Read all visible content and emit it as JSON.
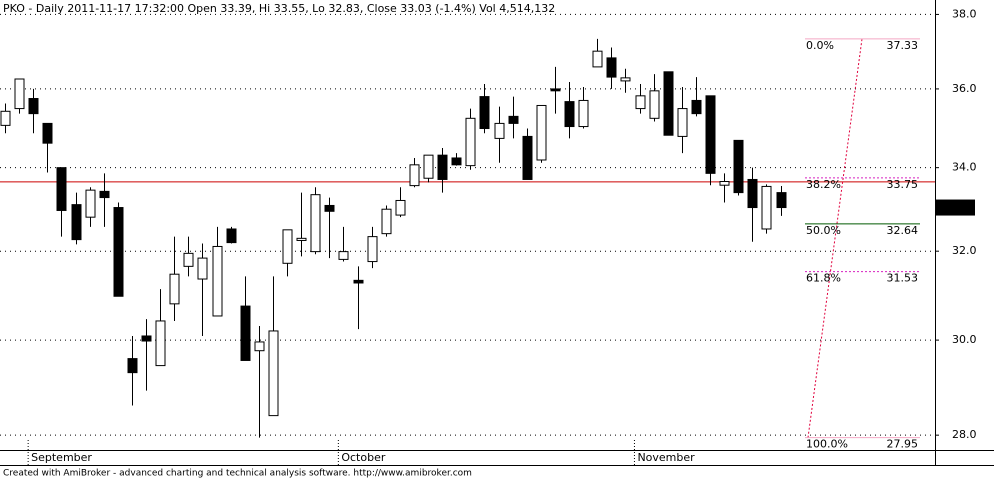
{
  "chart_data": {
    "type": "candlestick",
    "title": "PKO - Daily 2011-11-17 17:32:00 Open 33.39, Hi 33.55, Lo 32.83, Close 33.03 (-1.4%) Vol 4,514,132",
    "footer": "Created with AmiBroker - advanced charting and technical analysis software. http://www.amibroker.com",
    "categories": [
      null,
      null,
      "September",
      null,
      null,
      null,
      null,
      null,
      null,
      null,
      null,
      null,
      null,
      null,
      null,
      null,
      null,
      null,
      null,
      null,
      null,
      null,
      null,
      null,
      "October",
      null,
      null,
      null,
      null,
      null,
      null,
      null,
      null,
      null,
      null,
      null,
      null,
      null,
      null,
      null,
      null,
      null,
      null,
      null,
      null,
      "November",
      null,
      null,
      null,
      null,
      null,
      null,
      null,
      null,
      null,
      null
    ],
    "open": [
      35.06,
      35.49,
      35.75,
      35.11,
      34.0,
      33.1,
      32.8,
      33.42,
      33.03,
      29.6,
      30.09,
      29.45,
      30.8,
      31.65,
      31.36,
      30.53,
      32.52,
      30.75,
      29.77,
      28.4,
      31.72,
      32.25,
      31.99,
      33.08,
      31.81,
      31.33,
      31.76,
      32.41,
      32.85,
      33.56,
      33.74,
      34.31,
      34.24,
      34.05,
      35.8,
      34.73,
      35.29,
      34.78,
      34.19,
      36.0,
      35.67,
      35.03,
      36.58,
      36.82,
      36.21,
      35.49,
      35.24,
      36.45,
      34.78,
      35.7,
      35.82,
      33.57,
      34.68,
      33.71,
      32.52,
      33.39
    ],
    "high": [
      35.62,
      36.26,
      36.0,
      35.11,
      34.0,
      33.39,
      33.52,
      33.86,
      33.15,
      30.09,
      30.46,
      31.13,
      32.34,
      32.34,
      32.18,
      32.57,
      32.57,
      31.42,
      30.31,
      31.42,
      32.5,
      33.39,
      33.52,
      33.27,
      32.57,
      31.65,
      32.57,
      33.08,
      33.52,
      34.24,
      34.31,
      34.49,
      34.36,
      35.49,
      36.13,
      35.54,
      35.8,
      34.98,
      35.57,
      36.58,
      36.18,
      36.05,
      37.33,
      37.1,
      36.53,
      36.13,
      36.39,
      36.45,
      36.05,
      36.31,
      35.82,
      33.86,
      34.68,
      34.0,
      33.59,
      33.55
    ],
    "low": [
      34.86,
      35.36,
      34.86,
      33.88,
      32.34,
      32.16,
      32.57,
      32.57,
      30.97,
      28.61,
      28.92,
      29.45,
      30.42,
      31.42,
      30.09,
      30.53,
      32.18,
      29.56,
      27.95,
      28.4,
      31.42,
      31.88,
      31.93,
      31.84,
      31.76,
      30.24,
      31.61,
      32.34,
      32.8,
      33.52,
      33.64,
      33.39,
      34.05,
      33.95,
      34.86,
      34.12,
      34.73,
      33.71,
      34.12,
      35.36,
      34.73,
      34.98,
      36.58,
      36.0,
      35.9,
      35.36,
      35.16,
      34.81,
      34.36,
      35.29,
      33.57,
      33.15,
      33.32,
      32.22,
      32.41,
      32.83
    ],
    "close": [
      35.42,
      36.26,
      35.36,
      34.61,
      32.96,
      32.27,
      33.45,
      33.27,
      30.97,
      29.3,
      29.98,
      30.42,
      31.47,
      31.95,
      31.84,
      32.11,
      32.2,
      29.56,
      29.96,
      30.2,
      32.5,
      32.3,
      33.34,
      32.94,
      31.99,
      31.27,
      32.34,
      32.99,
      33.2,
      34.07,
      34.31,
      33.71,
      34.07,
      35.24,
      34.98,
      35.11,
      35.11,
      33.71,
      35.57,
      35.95,
      35.03,
      35.7,
      37.0,
      36.31,
      36.29,
      35.82,
      35.95,
      34.81,
      35.49,
      35.36,
      33.86,
      33.66,
      33.39,
      33.03,
      33.54,
      33.03
    ],
    "up_color": "#ffffff",
    "down_color": "#000000",
    "ylim": [
      27.7,
      38.4
    ],
    "log_scale": true,
    "grid": true,
    "yticks": [
      {
        "value": 28,
        "label": "28.0"
      },
      {
        "value": 30,
        "label": "30.0"
      },
      {
        "value": 32,
        "label": "32.0"
      },
      {
        "value": 34,
        "label": "34.0"
      },
      {
        "value": 36,
        "label": "36.0"
      },
      {
        "value": 38,
        "label": "38.0"
      }
    ],
    "hline": {
      "value": 33.65,
      "color": "#cc0000"
    },
    "fib": [
      {
        "label": "0.0%",
        "value": 37.33,
        "color": "#f4a8c4"
      },
      {
        "label": "38.2%",
        "value": 33.75,
        "color": "#d820c0"
      },
      {
        "label": "50.0%",
        "value": 32.64,
        "color": "#005a00"
      },
      {
        "label": "61.8%",
        "value": 31.53,
        "color": "#d820c0"
      },
      {
        "label": "100.0%",
        "value": 27.95,
        "color": "#f4a8c4"
      }
    ]
  }
}
